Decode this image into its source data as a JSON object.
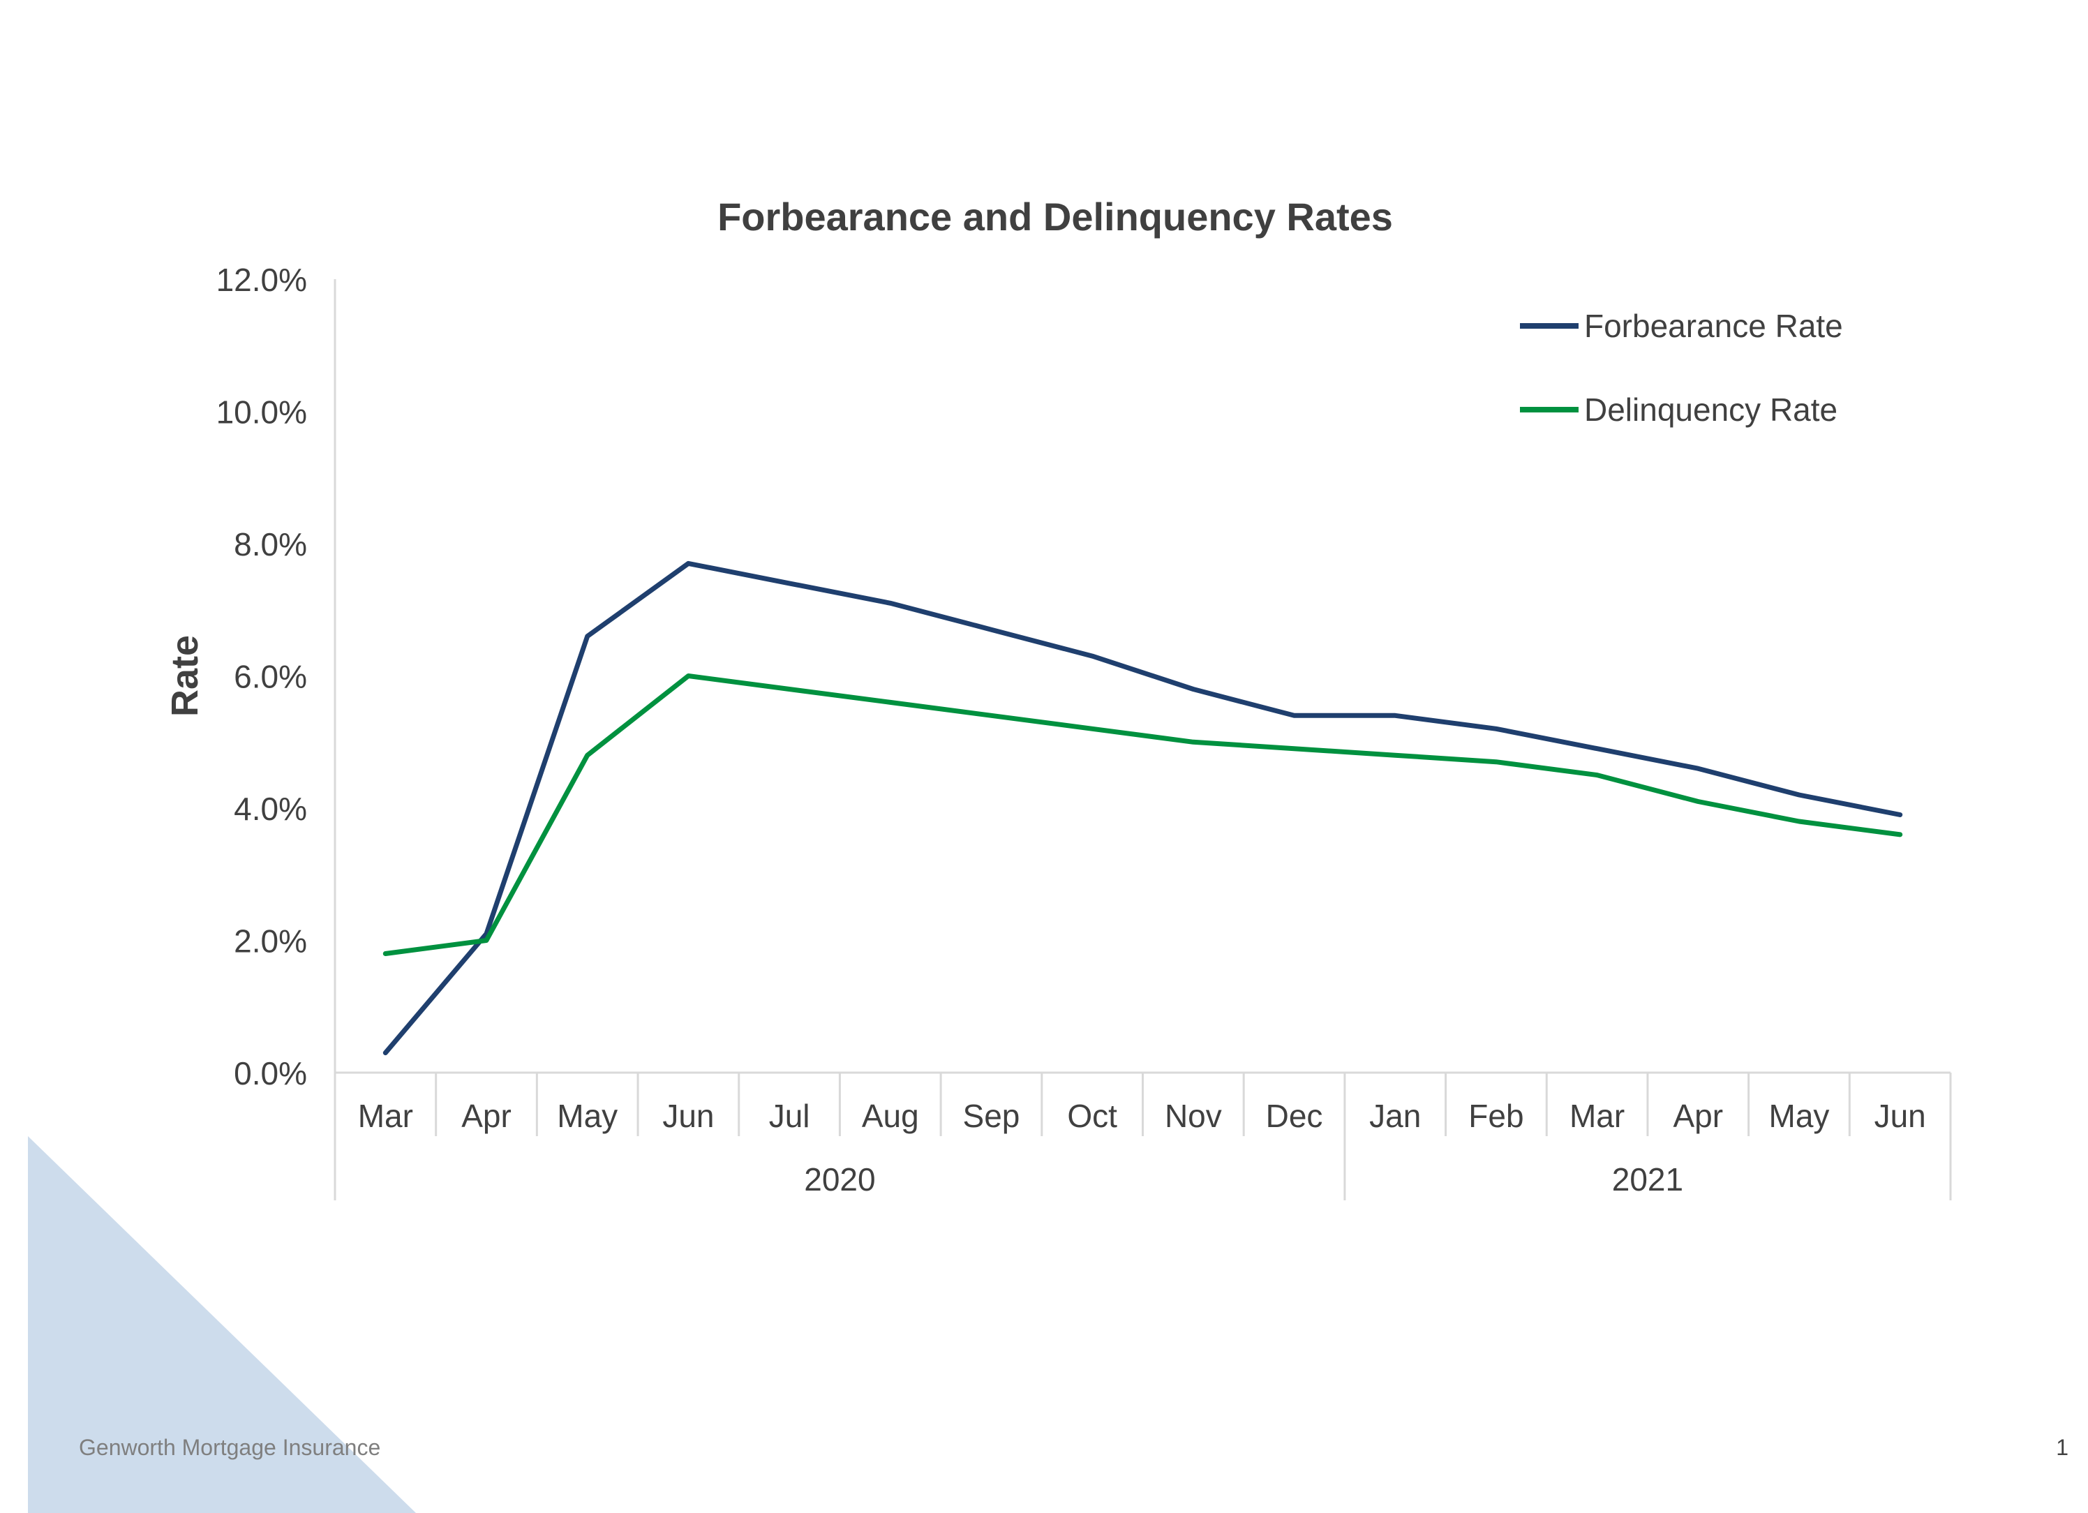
{
  "footer": {
    "company": "Genworth Mortgage Insurance",
    "page_number": "1"
  },
  "colors": {
    "forbearance": "#1f3f6e",
    "delinquency": "#00913f",
    "text": "#404040",
    "axis": "#d9d9d9",
    "decoration": "#cddcec"
  },
  "chart_data": {
    "type": "line",
    "title": "Forbearance and Delinquency Rates",
    "xlabel": "",
    "ylabel": "Rate",
    "ylim": [
      0,
      12
    ],
    "y_ticks": [
      "0.0%",
      "2.0%",
      "4.0%",
      "6.0%",
      "8.0%",
      "10.0%",
      "12.0%"
    ],
    "grid": false,
    "legend_position": "top-right",
    "categories": [
      "Mar",
      "Apr",
      "May",
      "Jun",
      "Jul",
      "Aug",
      "Sep",
      "Oct",
      "Nov",
      "Dec",
      "Jan",
      "Feb",
      "Mar",
      "Apr",
      "May",
      "Jun"
    ],
    "year_groups": [
      {
        "label": "2020",
        "start": 0,
        "count": 10
      },
      {
        "label": "2021",
        "start": 10,
        "count": 6
      }
    ],
    "series": [
      {
        "name": "Forbearance Rate",
        "values": [
          0.3,
          2.1,
          6.6,
          7.7,
          7.4,
          7.1,
          6.7,
          6.3,
          5.8,
          5.4,
          5.4,
          5.2,
          4.9,
          4.6,
          4.2,
          3.9
        ]
      },
      {
        "name": "Delinquency Rate",
        "values": [
          1.8,
          2.0,
          4.8,
          6.0,
          5.8,
          5.6,
          5.4,
          5.2,
          5.0,
          4.9,
          4.8,
          4.7,
          4.5,
          4.1,
          3.8,
          3.6
        ]
      }
    ]
  }
}
